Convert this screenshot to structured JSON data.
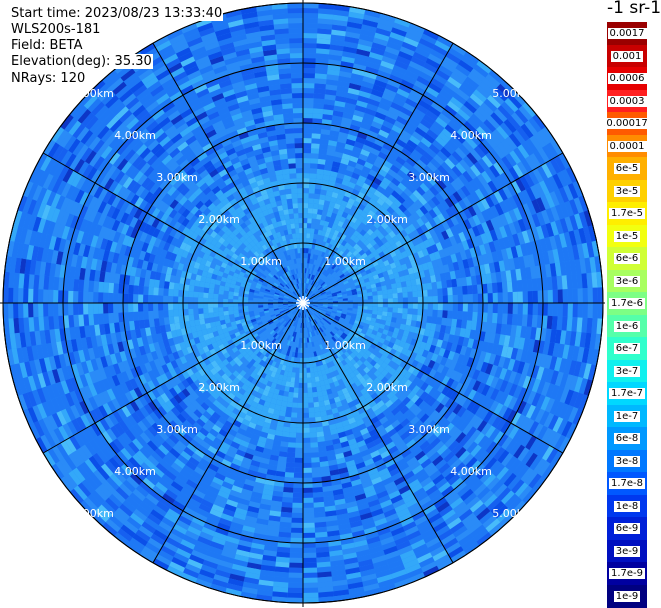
{
  "info": {
    "start_time": "Start time: 2023/08/23 13:33:40",
    "instrument": "WLS200s-181",
    "field": "Field: BETA",
    "elevation": "Elevation(deg): 35.30",
    "nrays": "NRays: 120"
  },
  "range_rings": [
    "1.00km",
    "2.00km",
    "3.00km",
    "4.00km",
    "5.00km"
  ],
  "colorbar": {
    "units": "-1 sr-1",
    "labels": [
      "0.0017",
      "0.001",
      "0.0006",
      "0.0003",
      "0.00017",
      "0.0001",
      "6e-5",
      "3e-5",
      "1.7e-5",
      "1e-5",
      "6e-6",
      "3e-6",
      "1.7e-6",
      "1e-6",
      "6e-7",
      "3e-7",
      "1.7e-7",
      "1e-7",
      "6e-8",
      "3e-8",
      "1.7e-8",
      "1e-8",
      "6e-9",
      "3e-9",
      "1.7e-9",
      "1e-9"
    ],
    "colors": [
      "#9a0000",
      "#c80000",
      "#e60000",
      "#ff2020",
      "#ff5a00",
      "#ff8c00",
      "#ffb000",
      "#ffd000",
      "#ffee00",
      "#f2ff10",
      "#d0ff35",
      "#a8ff60",
      "#7dff85",
      "#55ffaa",
      "#30ffcc",
      "#10f0ee",
      "#00d8ff",
      "#00b8ff",
      "#0098ff",
      "#0078ff",
      "#0058ff",
      "#0038ee",
      "#0020d8",
      "#0010c0",
      "#0000a0",
      "#000080"
    ]
  }
}
